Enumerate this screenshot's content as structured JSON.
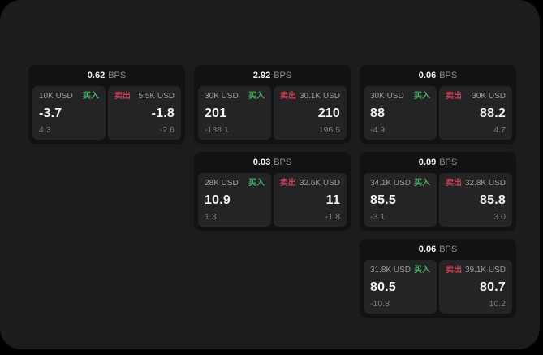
{
  "labels": {
    "buy": "买入",
    "sell": "卖出",
    "bps_suffix": "BPS"
  },
  "colors": {
    "background": "#000000",
    "panel": "#1c1c1e",
    "card": "#121214",
    "tile": "#242427",
    "value_white": "#f4f4f4",
    "label_gray": "#9b9b9b",
    "header_gray": "#8c8c8c",
    "delta_gray": "#7d7d7d",
    "buy_green": "#3fae5f",
    "sell_red": "#c23f56"
  },
  "cards": [
    {
      "bps": "0.62",
      "col": 0,
      "row": 0,
      "buy": {
        "amount": "10K USD",
        "price": "-3.7",
        "delta": "4.3"
      },
      "sell": {
        "amount": "5.5K USD",
        "price": "-1.8",
        "delta": "-2.6"
      }
    },
    {
      "bps": "2.92",
      "col": 1,
      "row": 0,
      "buy": {
        "amount": "30K USD",
        "price": "201",
        "delta": "-188.1"
      },
      "sell": {
        "amount": "30.1K USD",
        "price": "210",
        "delta": "196.5"
      }
    },
    {
      "bps": "0.06",
      "col": 2,
      "row": 0,
      "buy": {
        "amount": "30K USD",
        "price": "88",
        "delta": "-4.9"
      },
      "sell": {
        "amount": "30K USD",
        "price": "88.2",
        "delta": "4.7"
      }
    },
    {
      "bps": "0.03",
      "col": 1,
      "row": 1,
      "buy": {
        "amount": "28K USD",
        "price": "10.9",
        "delta": "1.3"
      },
      "sell": {
        "amount": "32.6K USD",
        "price": "11",
        "delta": "-1.8"
      }
    },
    {
      "bps": "0.09",
      "col": 2,
      "row": 1,
      "buy": {
        "amount": "34.1K USD",
        "price": "85.5",
        "delta": "-3.1"
      },
      "sell": {
        "amount": "32.8K USD",
        "price": "85.8",
        "delta": "3.0"
      }
    },
    {
      "bps": "0.06",
      "col": 2,
      "row": 2,
      "buy": {
        "amount": "31.8K USD",
        "price": "80.5",
        "delta": "-10.8"
      },
      "sell": {
        "amount": "39.1K USD",
        "price": "80.7",
        "delta": "10.2"
      }
    }
  ]
}
